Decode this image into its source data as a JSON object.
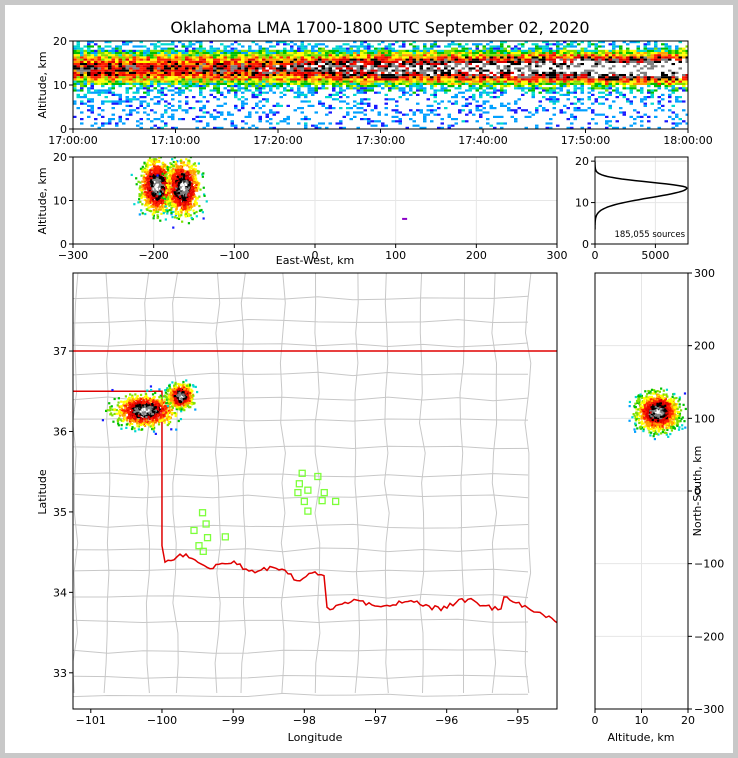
{
  "title": "Oklahoma LMA 1700-1800 UTC September 02, 2020",
  "colors": {
    "state_border": "#e00000",
    "county": "#c8c8c8",
    "stations": "#7dff3a",
    "curve": "#000000"
  },
  "chart_data": [
    {
      "type": "heatmap",
      "name": "time-altitude",
      "ylabel": "Altitude, km",
      "xlim": [
        0,
        60
      ],
      "ylim": [
        0,
        20
      ],
      "xticks": [
        "17:00:00",
        "17:10:00",
        "17:20:00",
        "17:30:00",
        "17:40:00",
        "17:50:00",
        "18:00:00"
      ],
      "yticks": [
        "0",
        "10",
        "20"
      ],
      "core_altitude_km": 14,
      "note": "sources concentrated 8-18 km, densest 13-15 km, increasing after 17:30"
    },
    {
      "type": "heatmap",
      "name": "east-west-altitude",
      "xlabel": "East-West, km",
      "ylabel": "Altitude, km",
      "xlim": [
        -300,
        300
      ],
      "ylim": [
        0,
        20
      ],
      "xticks": [
        "−300",
        "−200",
        "−100",
        "0",
        "100",
        "200",
        "300"
      ],
      "yticks": [
        "0",
        "10",
        "20"
      ],
      "cores": [
        {
          "x": -197,
          "alt": 13.5
        },
        {
          "x": -165,
          "alt": 13.2
        }
      ]
    },
    {
      "type": "line",
      "name": "altitude-histogram",
      "xlim": [
        0,
        7700
      ],
      "ylim": [
        0,
        21
      ],
      "xticks": [
        "0",
        "5000"
      ],
      "yticks": [
        "0",
        "10",
        "20"
      ],
      "peak_count": 7600,
      "peak_altitude_km": 13.5,
      "sources_label": "185,055 sources"
    },
    {
      "type": "scatter",
      "name": "plan-view-map",
      "xlabel": "Longitude",
      "ylabel": "Latitude",
      "xlim": [
        -101.25,
        -94.45
      ],
      "ylim": [
        32.55,
        37.97
      ],
      "xticks": [
        "−101",
        "−100",
        "−99",
        "−98",
        "−97",
        "−96",
        "−95"
      ],
      "yticks": [
        "33",
        "34",
        "35",
        "36",
        "37"
      ],
      "xtick_values": [
        -101,
        -100,
        -99,
        -98,
        -97,
        -96,
        -95
      ],
      "ytick_values": [
        33,
        34,
        35,
        36,
        37
      ],
      "stations": [
        {
          "lon": -98.03,
          "lat": 35.48
        },
        {
          "lon": -97.81,
          "lat": 35.44
        },
        {
          "lon": -98.07,
          "lat": 35.35
        },
        {
          "lon": -97.95,
          "lat": 35.27
        },
        {
          "lon": -98.09,
          "lat": 35.24
        },
        {
          "lon": -97.72,
          "lat": 35.24
        },
        {
          "lon": -98.0,
          "lat": 35.13
        },
        {
          "lon": -97.75,
          "lat": 35.14
        },
        {
          "lon": -97.56,
          "lat": 35.13
        },
        {
          "lon": -97.95,
          "lat": 35.01
        },
        {
          "lon": -99.43,
          "lat": 34.99
        },
        {
          "lon": -99.38,
          "lat": 34.85
        },
        {
          "lon": -99.55,
          "lat": 34.77
        },
        {
          "lon": -99.36,
          "lat": 34.68
        },
        {
          "lon": -99.11,
          "lat": 34.69
        },
        {
          "lon": -99.48,
          "lat": 34.58
        },
        {
          "lon": -99.42,
          "lat": 34.51
        }
      ],
      "source_clusters": [
        {
          "lon": -100.25,
          "lat": 36.27
        },
        {
          "lon": -99.75,
          "lat": 36.45
        }
      ]
    },
    {
      "type": "heatmap",
      "name": "altitude-north-south",
      "xlabel": "Altitude, km",
      "ylabel": "North-South, km",
      "xlim": [
        0,
        20
      ],
      "ylim": [
        -300,
        300
      ],
      "xticks": [
        "0",
        "10",
        "20"
      ],
      "yticks": [
        "−300",
        "−200",
        "−100",
        "0",
        "100",
        "200",
        "300"
      ],
      "core": {
        "alt": 13.3,
        "y": 110
      }
    }
  ]
}
